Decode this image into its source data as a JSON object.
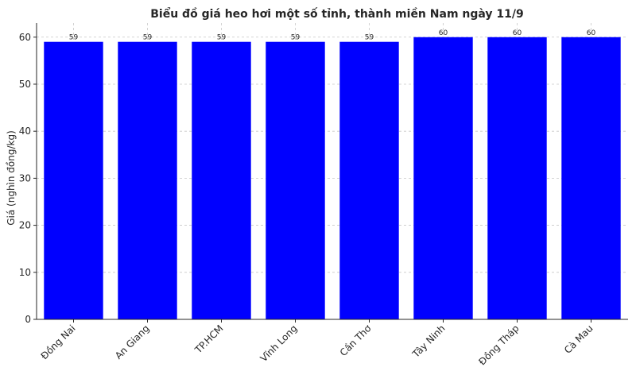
{
  "chart_data": {
    "type": "bar",
    "title": "Biểu đồ giá heo hơi một số tỉnh, thành miền Nam ngày 11/9",
    "xlabel": "",
    "ylabel": "Giá (nghìn đồng/kg)",
    "categories": [
      "Đồng Nai",
      "An Giang",
      "TP.HCM",
      "Vĩnh Long",
      "Cần Thơ",
      "Tây Ninh",
      "Đồng Tháp",
      "Cà Mau"
    ],
    "values": [
      59,
      59,
      59,
      59,
      59,
      60,
      60,
      60
    ],
    "data_labels": [
      "59",
      "59",
      "59",
      "59",
      "59",
      "60",
      "60",
      "60"
    ],
    "ylim": [
      0,
      63
    ],
    "yticks": [
      0,
      10,
      20,
      30,
      40,
      50,
      60
    ],
    "ytick_labels": [
      "0",
      "10",
      "20",
      "30",
      "40",
      "50",
      "60"
    ],
    "grid": true,
    "legend": "none",
    "bar_color": "#0000ff"
  }
}
